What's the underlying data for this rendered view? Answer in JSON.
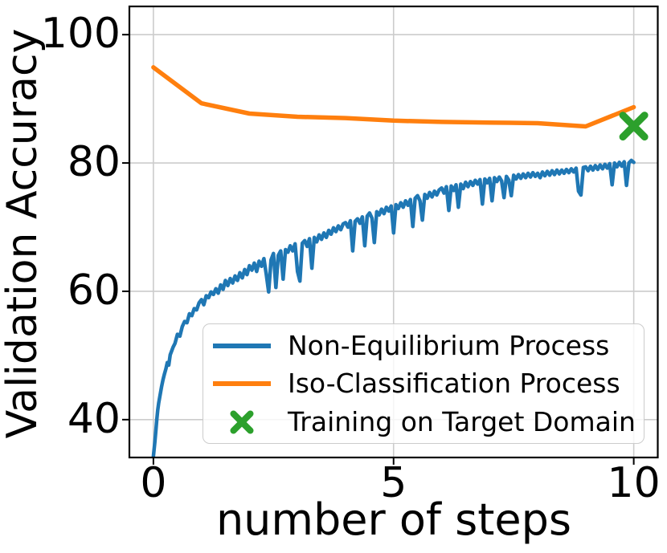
{
  "colors": {
    "blue": "#1f77b4",
    "orange": "#ff7f0e",
    "green": "#2ca02c",
    "grid": "#cccccc",
    "axis": "#000000",
    "legend_border": "#cccccc"
  },
  "chart_data": {
    "type": "line",
    "title": "",
    "xlabel": "number of steps",
    "ylabel": "Validation Accuracy",
    "xlim": [
      -0.5,
      10.5
    ],
    "ylim": [
      34.1,
      104.4
    ],
    "grid": true,
    "legend_position": "lower center",
    "xticks": [
      "0",
      "5",
      "10"
    ],
    "xtick_values": [
      0,
      5,
      10
    ],
    "yticks": [
      "40",
      "60",
      "80",
      "100"
    ],
    "ytick_values": [
      40,
      60,
      80,
      100
    ],
    "series": [
      {
        "name": "Non-Equilibrium Process",
        "kind": "line",
        "color": "#1f77b4",
        "line_width": 4.5,
        "points": [
          [
            0,
            34.3
          ],
          [
            0.03,
            36.5
          ],
          [
            0.05,
            38.2
          ],
          [
            0.07,
            40.0
          ],
          [
            0.09,
            41.5
          ],
          [
            0.11,
            42.6
          ],
          [
            0.14,
            43.9
          ],
          [
            0.17,
            45.1
          ],
          [
            0.2,
            46.2
          ],
          [
            0.23,
            47.1
          ],
          [
            0.26,
            47.9
          ],
          [
            0.29,
            48.9
          ],
          [
            0.32,
            48.5
          ],
          [
            0.35,
            50.1
          ],
          [
            0.38,
            50.7
          ],
          [
            0.41,
            51.3
          ],
          [
            0.45,
            51.9
          ],
          [
            0.5,
            53.3
          ],
          [
            0.55,
            53.0
          ],
          [
            0.6,
            54.5
          ],
          [
            0.65,
            55.3
          ],
          [
            0.7,
            55.1
          ],
          [
            0.75,
            56.5
          ],
          [
            0.8,
            56.2
          ],
          [
            0.85,
            57.3
          ],
          [
            0.9,
            57.1
          ],
          [
            0.95,
            58.2
          ],
          [
            1,
            58.7
          ],
          [
            1.05,
            57.9
          ],
          [
            1.1,
            59.3
          ],
          [
            1.15,
            59.0
          ],
          [
            1.2,
            59.9
          ],
          [
            1.25,
            59.5
          ],
          [
            1.3,
            60.4
          ],
          [
            1.35,
            59.7
          ],
          [
            1.4,
            61.0
          ],
          [
            1.45,
            60.3
          ],
          [
            1.5,
            61.7
          ],
          [
            1.55,
            60.9
          ],
          [
            1.6,
            62.0
          ],
          [
            1.65,
            61.3
          ],
          [
            1.7,
            62.4
          ],
          [
            1.75,
            61.7
          ],
          [
            1.8,
            62.9
          ],
          [
            1.85,
            62.1
          ],
          [
            1.9,
            63.4
          ],
          [
            1.95,
            62.6
          ],
          [
            2,
            64.0
          ],
          [
            2.05,
            63.3
          ],
          [
            2.1,
            64.4
          ],
          [
            2.15,
            63.1
          ],
          [
            2.2,
            64.7
          ],
          [
            2.25,
            63.9
          ],
          [
            2.3,
            65.1
          ],
          [
            2.35,
            62.6
          ],
          [
            2.4,
            59.9
          ],
          [
            2.45,
            64.9
          ],
          [
            2.5,
            65.9
          ],
          [
            2.55,
            60.6
          ],
          [
            2.6,
            65.6
          ],
          [
            2.65,
            66.3
          ],
          [
            2.7,
            61.9
          ],
          [
            2.75,
            66.5
          ],
          [
            2.8,
            66.1
          ],
          [
            2.85,
            67.1
          ],
          [
            2.9,
            66.3
          ],
          [
            2.95,
            67.4
          ],
          [
            3,
            63.1
          ],
          [
            3.05,
            61.6
          ],
          [
            3.1,
            67.5
          ],
          [
            3.15,
            67.9
          ],
          [
            3.2,
            67.0
          ],
          [
            3.25,
            68.2
          ],
          [
            3.3,
            63.6
          ],
          [
            3.35,
            68.4
          ],
          [
            3.4,
            67.7
          ],
          [
            3.45,
            68.8
          ],
          [
            3.5,
            68.1
          ],
          [
            3.55,
            69.1
          ],
          [
            3.6,
            68.4
          ],
          [
            3.65,
            69.5
          ],
          [
            3.7,
            68.9
          ],
          [
            3.75,
            69.9
          ],
          [
            3.8,
            69.3
          ],
          [
            3.85,
            70.2
          ],
          [
            3.9,
            69.6
          ],
          [
            3.95,
            70.5
          ],
          [
            4,
            70.7
          ],
          [
            4.05,
            70.0
          ],
          [
            4.1,
            71.0
          ],
          [
            4.15,
            66.3
          ],
          [
            4.2,
            70.9
          ],
          [
            4.25,
            71.3
          ],
          [
            4.3,
            70.6
          ],
          [
            4.35,
            71.6
          ],
          [
            4.4,
            67.1
          ],
          [
            4.45,
            71.7
          ],
          [
            4.5,
            72.2
          ],
          [
            4.55,
            71.4
          ],
          [
            4.6,
            67.6
          ],
          [
            4.65,
            72.4
          ],
          [
            4.7,
            71.9
          ],
          [
            4.75,
            72.8
          ],
          [
            4.8,
            72.1
          ],
          [
            4.85,
            73.1
          ],
          [
            4.9,
            72.5
          ],
          [
            4.95,
            73.3
          ],
          [
            5,
            69.1
          ],
          [
            5.05,
            73.5
          ],
          [
            5.1,
            72.9
          ],
          [
            5.15,
            73.8
          ],
          [
            5.2,
            73.1
          ],
          [
            5.25,
            74.1
          ],
          [
            5.3,
            73.4
          ],
          [
            5.35,
            74.3
          ],
          [
            5.4,
            70.1
          ],
          [
            5.45,
            74.5
          ],
          [
            5.5,
            74.9
          ],
          [
            5.55,
            74.1
          ],
          [
            5.6,
            71.1
          ],
          [
            5.65,
            75.1
          ],
          [
            5.7,
            74.5
          ],
          [
            5.75,
            75.4
          ],
          [
            5.8,
            74.7
          ],
          [
            5.85,
            75.6
          ],
          [
            5.9,
            75.0
          ],
          [
            5.95,
            75.8
          ],
          [
            6,
            76.1
          ],
          [
            6.05,
            75.3
          ],
          [
            6.1,
            76.3
          ],
          [
            6.15,
            72.6
          ],
          [
            6.2,
            76.4
          ],
          [
            6.25,
            75.7
          ],
          [
            6.3,
            76.6
          ],
          [
            6.35,
            73.1
          ],
          [
            6.4,
            76.7
          ],
          [
            6.45,
            76.0
          ],
          [
            6.5,
            77.0
          ],
          [
            6.55,
            76.3
          ],
          [
            6.6,
            77.1
          ],
          [
            6.65,
            76.5
          ],
          [
            6.7,
            77.3
          ],
          [
            6.75,
            76.7
          ],
          [
            6.8,
            77.4
          ],
          [
            6.85,
            73.6
          ],
          [
            6.9,
            77.5
          ],
          [
            6.95,
            76.9
          ],
          [
            7,
            77.6
          ],
          [
            7.05,
            74.1
          ],
          [
            7.1,
            77.7
          ],
          [
            7.15,
            77.1
          ],
          [
            7.2,
            77.8
          ],
          [
            7.25,
            77.2
          ],
          [
            7.3,
            74.6
          ],
          [
            7.35,
            77.9
          ],
          [
            7.4,
            77.3
          ],
          [
            7.45,
            74.9
          ],
          [
            7.5,
            78.1
          ],
          [
            7.55,
            77.5
          ],
          [
            7.6,
            78.2
          ],
          [
            7.65,
            77.6
          ],
          [
            7.7,
            78.3
          ],
          [
            7.75,
            77.7
          ],
          [
            7.8,
            78.4
          ],
          [
            7.85,
            77.8
          ],
          [
            7.9,
            78.5
          ],
          [
            7.95,
            77.9
          ],
          [
            8,
            78.4
          ],
          [
            8.05,
            77.7
          ],
          [
            8.1,
            78.6
          ],
          [
            8.15,
            78.0
          ],
          [
            8.2,
            78.7
          ],
          [
            8.25,
            78.1
          ],
          [
            8.3,
            78.8
          ],
          [
            8.35,
            78.2
          ],
          [
            8.4,
            78.9
          ],
          [
            8.45,
            78.3
          ],
          [
            8.5,
            78.9
          ],
          [
            8.55,
            78.4
          ],
          [
            8.6,
            79.0
          ],
          [
            8.65,
            78.5
          ],
          [
            8.7,
            79.1
          ],
          [
            8.75,
            78.6
          ],
          [
            8.8,
            79.2
          ],
          [
            8.85,
            75.6
          ],
          [
            8.9,
            75.0
          ],
          [
            8.95,
            79.3
          ],
          [
            9,
            79.4
          ],
          [
            9.05,
            78.8
          ],
          [
            9.1,
            79.5
          ],
          [
            9.15,
            78.9
          ],
          [
            9.2,
            79.6
          ],
          [
            9.25,
            79.0
          ],
          [
            9.3,
            79.7
          ],
          [
            9.35,
            79.1
          ],
          [
            9.4,
            79.8
          ],
          [
            9.45,
            79.2
          ],
          [
            9.5,
            79.9
          ],
          [
            9.55,
            76.6
          ],
          [
            9.6,
            80.0
          ],
          [
            9.65,
            79.4
          ],
          [
            9.7,
            80.1
          ],
          [
            9.75,
            79.5
          ],
          [
            9.8,
            80.2
          ],
          [
            9.85,
            76.5
          ],
          [
            9.9,
            80.0
          ],
          [
            9.95,
            80.4
          ],
          [
            10,
            80.1
          ]
        ]
      },
      {
        "name": "Iso-Classification Process",
        "kind": "line",
        "color": "#ff7f0e",
        "line_width": 5.5,
        "points": [
          [
            0,
            94.9
          ],
          [
            1,
            89.3
          ],
          [
            2,
            87.7
          ],
          [
            3,
            87.2
          ],
          [
            4,
            87.0
          ],
          [
            5,
            86.6
          ],
          [
            6,
            86.4
          ],
          [
            7,
            86.3
          ],
          [
            8,
            86.2
          ],
          [
            9,
            85.7
          ],
          [
            10,
            88.7
          ]
        ]
      },
      {
        "name": "Training on Target Domain",
        "kind": "scatter",
        "marker": "X",
        "color": "#2ca02c",
        "marker_size": 27,
        "points": [
          [
            10,
            85.75
          ]
        ]
      }
    ],
    "legend": {
      "items": [
        {
          "label": "Non-Equilibrium Process",
          "marker": "line",
          "color": "#1f77b4"
        },
        {
          "label": "Iso-Classification Process",
          "marker": "line",
          "color": "#ff7f0e"
        },
        {
          "label": "Training on Target Domain",
          "marker": "x",
          "color": "#2ca02c"
        }
      ]
    }
  }
}
